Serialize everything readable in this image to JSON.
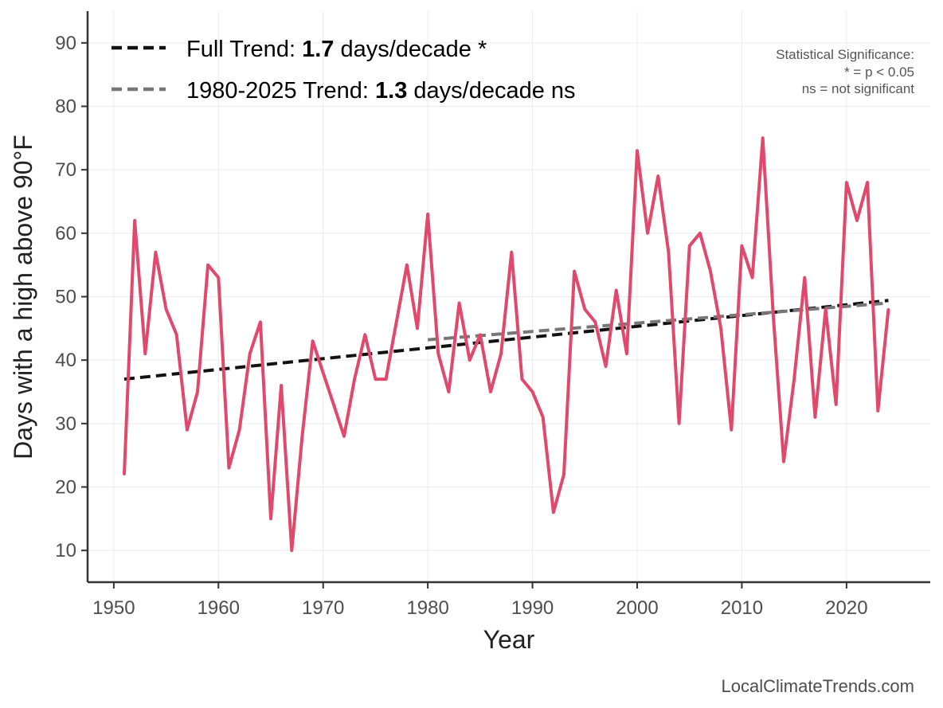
{
  "chart_data": {
    "type": "line",
    "xlabel": "Year",
    "ylabel": "Days with a high above 90°F",
    "xlim": [
      1947.5,
      2028
    ],
    "ylim": [
      5,
      95
    ],
    "xticks": [
      1950,
      1960,
      1970,
      1980,
      1990,
      2000,
      2010,
      2020
    ],
    "yticks": [
      10,
      20,
      30,
      40,
      50,
      60,
      70,
      80,
      90
    ],
    "grid": true,
    "legend_position": "top-left",
    "series": [
      {
        "name": "Days with a high above 90°F",
        "color": "#e0496c",
        "x": [
          1951,
          1952,
          1953,
          1954,
          1955,
          1956,
          1957,
          1958,
          1959,
          1960,
          1961,
          1962,
          1963,
          1964,
          1965,
          1966,
          1967,
          1968,
          1969,
          1970,
          1971,
          1972,
          1973,
          1974,
          1975,
          1976,
          1977,
          1978,
          1979,
          1980,
          1981,
          1982,
          1983,
          1984,
          1985,
          1986,
          1987,
          1988,
          1989,
          1990,
          1991,
          1992,
          1993,
          1994,
          1995,
          1996,
          1997,
          1998,
          1999,
          2000,
          2001,
          2002,
          2003,
          2004,
          2005,
          2006,
          2007,
          2008,
          2009,
          2010,
          2011,
          2012,
          2013,
          2014,
          2015,
          2016,
          2017,
          2018,
          2019,
          2020,
          2021,
          2022,
          2023,
          2024
        ],
        "values": [
          22,
          62,
          41,
          57,
          48,
          44,
          29,
          35,
          55,
          53,
          23,
          29,
          41,
          46,
          15,
          36,
          10,
          28,
          43,
          38,
          33,
          28,
          37,
          44,
          37,
          37,
          46,
          55,
          45,
          63,
          41,
          35,
          49,
          40,
          44,
          35,
          41,
          57,
          37,
          35,
          31,
          16,
          22,
          54,
          48,
          46,
          39,
          51,
          41,
          73,
          60,
          69,
          57,
          30,
          58,
          60,
          54,
          45,
          29,
          58,
          53,
          75,
          47,
          24,
          37,
          53,
          31,
          48,
          33,
          68,
          62,
          68,
          32,
          48
        ]
      }
    ],
    "trends": [
      {
        "name": "Full Trend",
        "color": "#111111",
        "style": "dashed",
        "x": [
          1951,
          2024
        ],
        "y": [
          37,
          49.4
        ],
        "legend_prefix": "Full Trend: ",
        "legend_value": "1.7",
        "legend_suffix": " days/decade *"
      },
      {
        "name": "1980-2025 Trend",
        "color": "#777777",
        "style": "dashed",
        "x": [
          1980,
          2024
        ],
        "y": [
          43.2,
          49.0
        ],
        "legend_prefix": "1980-2025 Trend: ",
        "legend_value": "1.3",
        "legend_suffix": " days/decade ns"
      }
    ],
    "significance_note": [
      "Statistical Significance:",
      "* = p < 0.05",
      "ns = not significant"
    ],
    "credit": "LocalClimateTrends.com"
  }
}
